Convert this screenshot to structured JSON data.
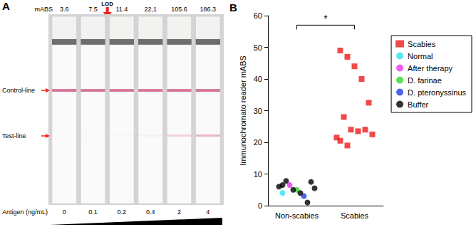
{
  "panel_a": {
    "letter": "A",
    "header": "mABS",
    "mabs": [
      3.6,
      7.5,
      11.4,
      {
        "value": 22.1,
        "label": "22,1"
      },
      105.6,
      186.3
    ],
    "lod": {
      "label": "LOD",
      "antigen": 0.1
    },
    "control_line_label": "Control-line",
    "test_line_label": "Test-line",
    "antigen_label": "Antigen (ng/mL)",
    "antigen": [
      0,
      0.1,
      0.2,
      0.4,
      2,
      4
    ]
  },
  "chart_data": {
    "type": "scatter",
    "letter": "B",
    "y_label": "Immunochromato reader mABS",
    "categories": [
      "Non-scabies",
      "Scabies"
    ],
    "ylim": [
      0,
      60
    ],
    "yticks": [
      0,
      10,
      20,
      30,
      40,
      50,
      60
    ],
    "grid": false,
    "legend": "right",
    "series": [
      {
        "name": "Scabies",
        "color": "#ee1c1c",
        "marker": "square",
        "x": [
          "Scabies",
          "Scabies",
          "Scabies",
          "Scabies",
          "Scabies",
          "Scabies",
          "Scabies",
          "Scabies",
          "Scabies",
          "Scabies",
          "Scabies",
          "Scabies",
          "Scabies"
        ],
        "values": [
          49,
          47,
          44,
          40,
          32.5,
          28,
          24,
          23.5,
          24,
          22.5,
          21.5,
          20.5,
          19
        ]
      },
      {
        "name": "Normal",
        "color": "#2fe0ee",
        "marker": "circle",
        "x": [
          "Non-scabies"
        ],
        "values": [
          4
        ]
      },
      {
        "name": "After therapy",
        "color": "#ee2fee",
        "marker": "circle",
        "x": [
          "Non-scabies"
        ],
        "values": [
          6.5
        ]
      },
      {
        "name": "D. farinae",
        "color": "#2fd82f",
        "marker": "circle",
        "x": [
          "Non-scabies"
        ],
        "values": [
          5
        ]
      },
      {
        "name": "D. pteronyssinus",
        "color": "#1f3fe0",
        "marker": "circle",
        "x": [
          "Non-scabies"
        ],
        "values": [
          3
        ]
      },
      {
        "name": "Buffer",
        "color": "#000000",
        "marker": "circle",
        "x": [
          "Non-scabies",
          "Non-scabies",
          "Non-scabies",
          "Non-scabies",
          "Non-scabies",
          "Non-scabies",
          "Non-scabies",
          "Non-scabies"
        ],
        "values": [
          7.5,
          7.8,
          5,
          4,
          1,
          5.5,
          6,
          6.5
        ]
      }
    ],
    "annotations": [
      {
        "text": "*",
        "from": "Non-scabies",
        "to": "Scabies",
        "y": 57
      }
    ]
  }
}
